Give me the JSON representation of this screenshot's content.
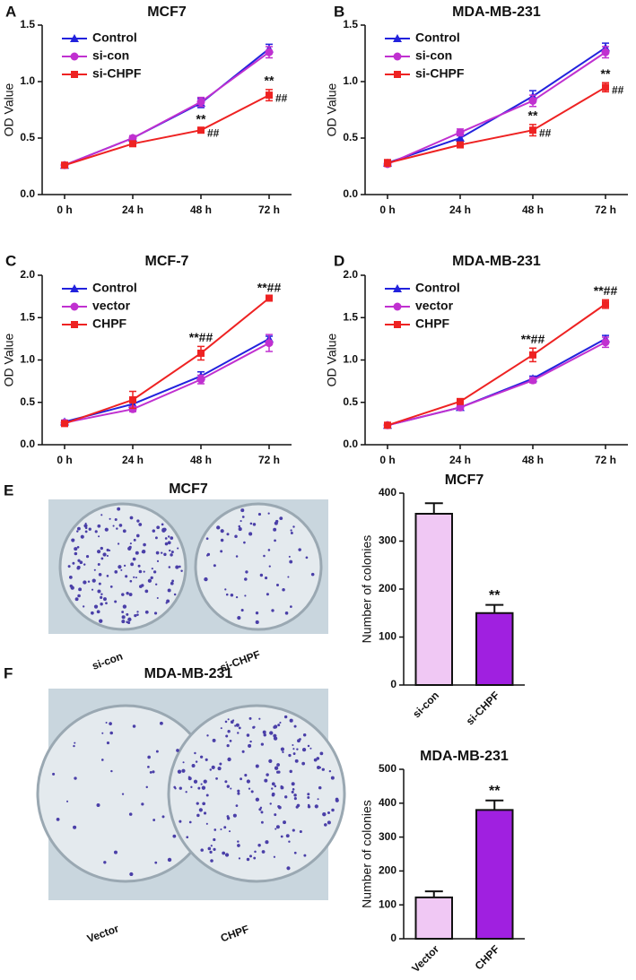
{
  "chart_data": [
    {
      "type": "line",
      "panel_label": "A",
      "title": "MCF7",
      "ylabel": "OD Value",
      "categories": [
        "0 h",
        "24 h",
        "48 h",
        "72 h"
      ],
      "ylim": [
        0,
        1.5
      ],
      "yticks": [
        {
          "value": 0,
          "label": "0.0"
        },
        {
          "value": 0.5,
          "label": "0.5"
        },
        {
          "value": 1,
          "label": "1.0"
        },
        {
          "value": 1.5,
          "label": "1.5"
        }
      ],
      "series": [
        {
          "name": "Control",
          "color": "#2222dd",
          "marker": "triangle",
          "values": [
            0.26,
            0.5,
            0.81,
            1.29
          ],
          "errors": [
            0.01,
            0.02,
            0.04,
            0.04
          ]
        },
        {
          "name": "si-con",
          "color": "#c030d0",
          "marker": "circle",
          "values": [
            0.26,
            0.5,
            0.82,
            1.26
          ],
          "errors": [
            0.01,
            0.02,
            0.04,
            0.05
          ]
        },
        {
          "name": "si-CHPF",
          "color": "#ee2222",
          "marker": "square",
          "values": [
            0.26,
            0.45,
            0.57,
            0.88
          ],
          "errors": [
            0.01,
            0.02,
            0.02,
            0.05
          ],
          "annotations": [
            null,
            null,
            "**",
            "**"
          ],
          "side_annotations": [
            null,
            null,
            "##",
            "##"
          ]
        }
      ]
    },
    {
      "type": "line",
      "panel_label": "B",
      "title": "MDA-MB-231",
      "ylabel": "OD Value",
      "categories": [
        "0 h",
        "24 h",
        "48 h",
        "72 h"
      ],
      "ylim": [
        0,
        1.5
      ],
      "yticks": [
        {
          "value": 0,
          "label": "0.0"
        },
        {
          "value": 0.5,
          "label": "0.5"
        },
        {
          "value": 1,
          "label": "1.0"
        },
        {
          "value": 1.5,
          "label": "1.5"
        }
      ],
      "series": [
        {
          "name": "Control",
          "color": "#2222dd",
          "marker": "triangle",
          "values": [
            0.28,
            0.5,
            0.87,
            1.3
          ],
          "errors": [
            0.02,
            0.03,
            0.05,
            0.04
          ]
        },
        {
          "name": "si-con",
          "color": "#c030d0",
          "marker": "circle",
          "values": [
            0.27,
            0.55,
            0.83,
            1.26
          ],
          "errors": [
            0.02,
            0.03,
            0.05,
            0.05
          ]
        },
        {
          "name": "si-CHPF",
          "color": "#ee2222",
          "marker": "square",
          "values": [
            0.28,
            0.44,
            0.57,
            0.95
          ],
          "errors": [
            0.03,
            0.02,
            0.05,
            0.04
          ],
          "annotations": [
            null,
            null,
            "**",
            "**"
          ],
          "side_annotations": [
            null,
            null,
            "##",
            "##"
          ]
        }
      ]
    },
    {
      "type": "line",
      "panel_label": "C",
      "title": "MCF-7",
      "ylabel": "OD Value",
      "categories": [
        "0 h",
        "24 h",
        "48 h",
        "72 h"
      ],
      "ylim": [
        0,
        2
      ],
      "yticks": [
        {
          "value": 0,
          "label": "0.0"
        },
        {
          "value": 0.5,
          "label": "0.5"
        },
        {
          "value": 1,
          "label": "1.0"
        },
        {
          "value": 1.5,
          "label": "1.5"
        },
        {
          "value": 2,
          "label": "2.0"
        }
      ],
      "series": [
        {
          "name": "Control",
          "color": "#2222dd",
          "marker": "triangle",
          "values": [
            0.27,
            0.48,
            0.81,
            1.25
          ],
          "errors": [
            0.02,
            0.05,
            0.05,
            0.03
          ]
        },
        {
          "name": "vector",
          "color": "#c030d0",
          "marker": "circle",
          "values": [
            0.26,
            0.42,
            0.77,
            1.2
          ],
          "errors": [
            0.02,
            0.03,
            0.05,
            0.1
          ]
        },
        {
          "name": "CHPF",
          "color": "#ee2222",
          "marker": "square",
          "values": [
            0.25,
            0.53,
            1.08,
            1.73
          ],
          "errors": [
            0.03,
            0.1,
            0.08,
            0.02
          ],
          "annotations": [
            null,
            null,
            "**##",
            "**##"
          ]
        }
      ]
    },
    {
      "type": "line",
      "panel_label": "D",
      "title": "MDA-MB-231",
      "ylabel": "OD Value",
      "categories": [
        "0 h",
        "24 h",
        "48 h",
        "72 h"
      ],
      "ylim": [
        0,
        2
      ],
      "yticks": [
        {
          "value": 0,
          "label": "0.0"
        },
        {
          "value": 0.5,
          "label": "0.5"
        },
        {
          "value": 1,
          "label": "1.0"
        },
        {
          "value": 1.5,
          "label": "1.5"
        },
        {
          "value": 2,
          "label": "2.0"
        }
      ],
      "series": [
        {
          "name": "Control",
          "color": "#2222dd",
          "marker": "triangle",
          "values": [
            0.23,
            0.44,
            0.78,
            1.25
          ],
          "errors": [
            0.02,
            0.02,
            0.03,
            0.04
          ]
        },
        {
          "name": "vector",
          "color": "#c030d0",
          "marker": "circle",
          "values": [
            0.23,
            0.44,
            0.76,
            1.21
          ],
          "errors": [
            0.02,
            0.02,
            0.03,
            0.06
          ]
        },
        {
          "name": "CHPF",
          "color": "#ee2222",
          "marker": "square",
          "values": [
            0.23,
            0.51,
            1.06,
            1.66
          ],
          "errors": [
            0.02,
            0.02,
            0.08,
            0.05
          ],
          "annotations": [
            null,
            null,
            "**##",
            "**##"
          ]
        }
      ]
    },
    {
      "type": "bar",
      "title": "MCF7",
      "ylabel": "Number of colonies",
      "categories": [
        "si-con",
        "si-CHPF"
      ],
      "values": [
        357,
        150
      ],
      "errors": [
        22,
        17
      ],
      "colors": [
        "#f0c8f4",
        "#a020e0"
      ],
      "annotations": [
        null,
        "**"
      ],
      "ylim": [
        0,
        400
      ],
      "yticks": [
        0,
        100,
        200,
        300,
        400
      ]
    },
    {
      "type": "bar",
      "title": "MDA-MB-231",
      "ylabel": "Number of colonies",
      "categories": [
        "Vector",
        "CHPF"
      ],
      "values": [
        122,
        380
      ],
      "errors": [
        18,
        28
      ],
      "colors": [
        "#f0c8f4",
        "#a020e0"
      ],
      "annotations": [
        null,
        "**"
      ],
      "ylim": [
        0,
        500
      ],
      "yticks": [
        0,
        100,
        200,
        300,
        400,
        500
      ]
    }
  ],
  "photos": [
    {
      "panel_label": "E",
      "title": "MCF7",
      "labels": [
        "si-con",
        "si-CHPF"
      ]
    },
    {
      "panel_label": "F",
      "title": "MDA-MB-231",
      "labels": [
        "Vector",
        "CHPF"
      ]
    }
  ]
}
